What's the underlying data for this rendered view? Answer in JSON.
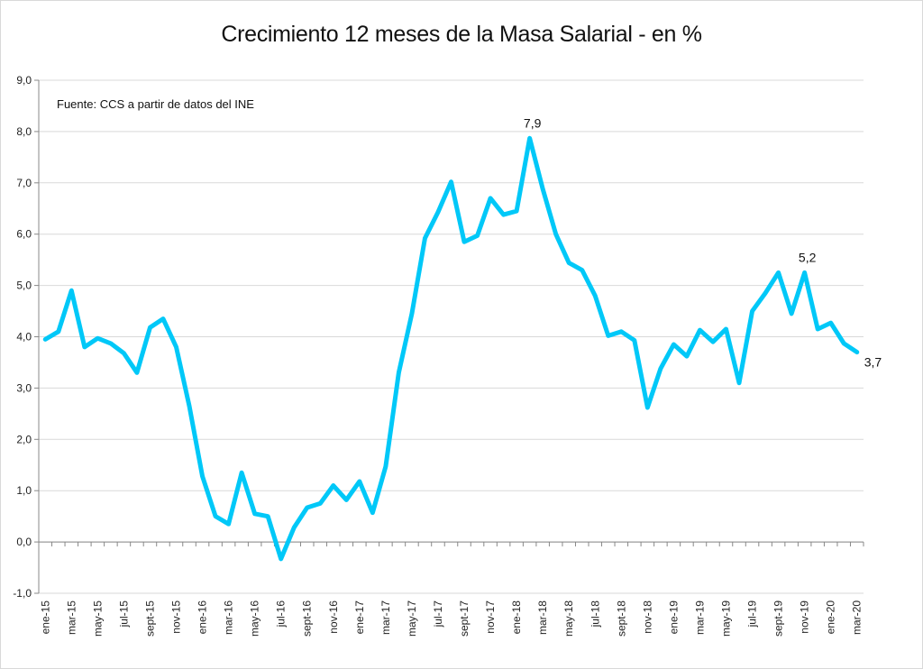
{
  "chart_data": {
    "type": "line",
    "title": "Crecimiento 12 meses de la Masa Salarial - en %",
    "note": "Fuente: CCS a partir de datos del INE",
    "ylim": [
      -1,
      9
    ],
    "yticks": [
      "-1,0",
      "0,0",
      "1,0",
      "2,0",
      "3,0",
      "4,0",
      "5,0",
      "6,0",
      "7,0",
      "8,0",
      "9,0"
    ],
    "grid": true,
    "line_color": "#00c8f8",
    "x": [
      "ene-15",
      "feb-15",
      "mar-15",
      "abr-15",
      "may-15",
      "jun-15",
      "jul-15",
      "ago-15",
      "sept-15",
      "oct-15",
      "nov-15",
      "dic-15",
      "ene-16",
      "feb-16",
      "mar-16",
      "abr-16",
      "may-16",
      "jun-16",
      "jul-16",
      "ago-16",
      "sept-16",
      "oct-16",
      "nov-16",
      "dic-16",
      "ene-17",
      "feb-17",
      "mar-17",
      "abr-17",
      "may-17",
      "jun-17",
      "jul-17",
      "ago-17",
      "sept-17",
      "oct-17",
      "nov-17",
      "dic-17",
      "ene-18",
      "feb-18",
      "mar-18",
      "abr-18",
      "may-18",
      "jun-18",
      "jul-18",
      "ago-18",
      "sept-18",
      "oct-18",
      "nov-18",
      "dic-18",
      "ene-19",
      "feb-19",
      "mar-19",
      "abr-19",
      "may-19",
      "jun-19",
      "jul-19",
      "ago-19",
      "sept-19",
      "oct-19",
      "nov-19",
      "dic-19",
      "ene-20",
      "feb-20",
      "mar-20"
    ],
    "xtick_labels": [
      "ene-15",
      "mar-15",
      "may-15",
      "jul-15",
      "sept-15",
      "nov-15",
      "ene-16",
      "mar-16",
      "may-16",
      "jul-16",
      "sept-16",
      "nov-16",
      "ene-17",
      "mar-17",
      "may-17",
      "jul-17",
      "sept-17",
      "nov-17",
      "ene-18",
      "mar-18",
      "may-18",
      "jul-18",
      "sept-18",
      "nov-18",
      "ene-19",
      "mar-19",
      "may-19",
      "jul-19",
      "sept-19",
      "nov-19",
      "ene-20",
      "mar-20"
    ],
    "series": [
      {
        "values": [
          3.95,
          4.1,
          4.9,
          3.8,
          3.97,
          3.87,
          3.68,
          3.3,
          4.18,
          4.35,
          3.8,
          2.65,
          1.28,
          0.5,
          0.35,
          1.35,
          0.55,
          0.5,
          -0.33,
          0.28,
          0.67,
          0.75,
          1.1,
          0.82,
          1.18,
          0.57,
          1.47,
          3.3,
          4.45,
          5.92,
          6.43,
          7.02,
          5.85,
          5.97,
          6.7,
          6.38,
          6.45,
          7.87,
          6.88,
          6.0,
          5.44,
          5.3,
          4.8,
          4.02,
          4.1,
          3.93,
          2.62,
          3.38,
          3.85,
          3.62,
          4.13,
          3.9,
          4.15,
          3.1,
          4.5,
          4.85,
          5.25,
          4.45,
          5.25,
          4.15,
          4.27,
          3.87,
          3.7
        ]
      }
    ],
    "data_labels": [
      {
        "index": 37,
        "text": "7,9"
      },
      {
        "index": 58,
        "text": "5,2"
      },
      {
        "index": 62,
        "text": "3,7"
      }
    ]
  }
}
